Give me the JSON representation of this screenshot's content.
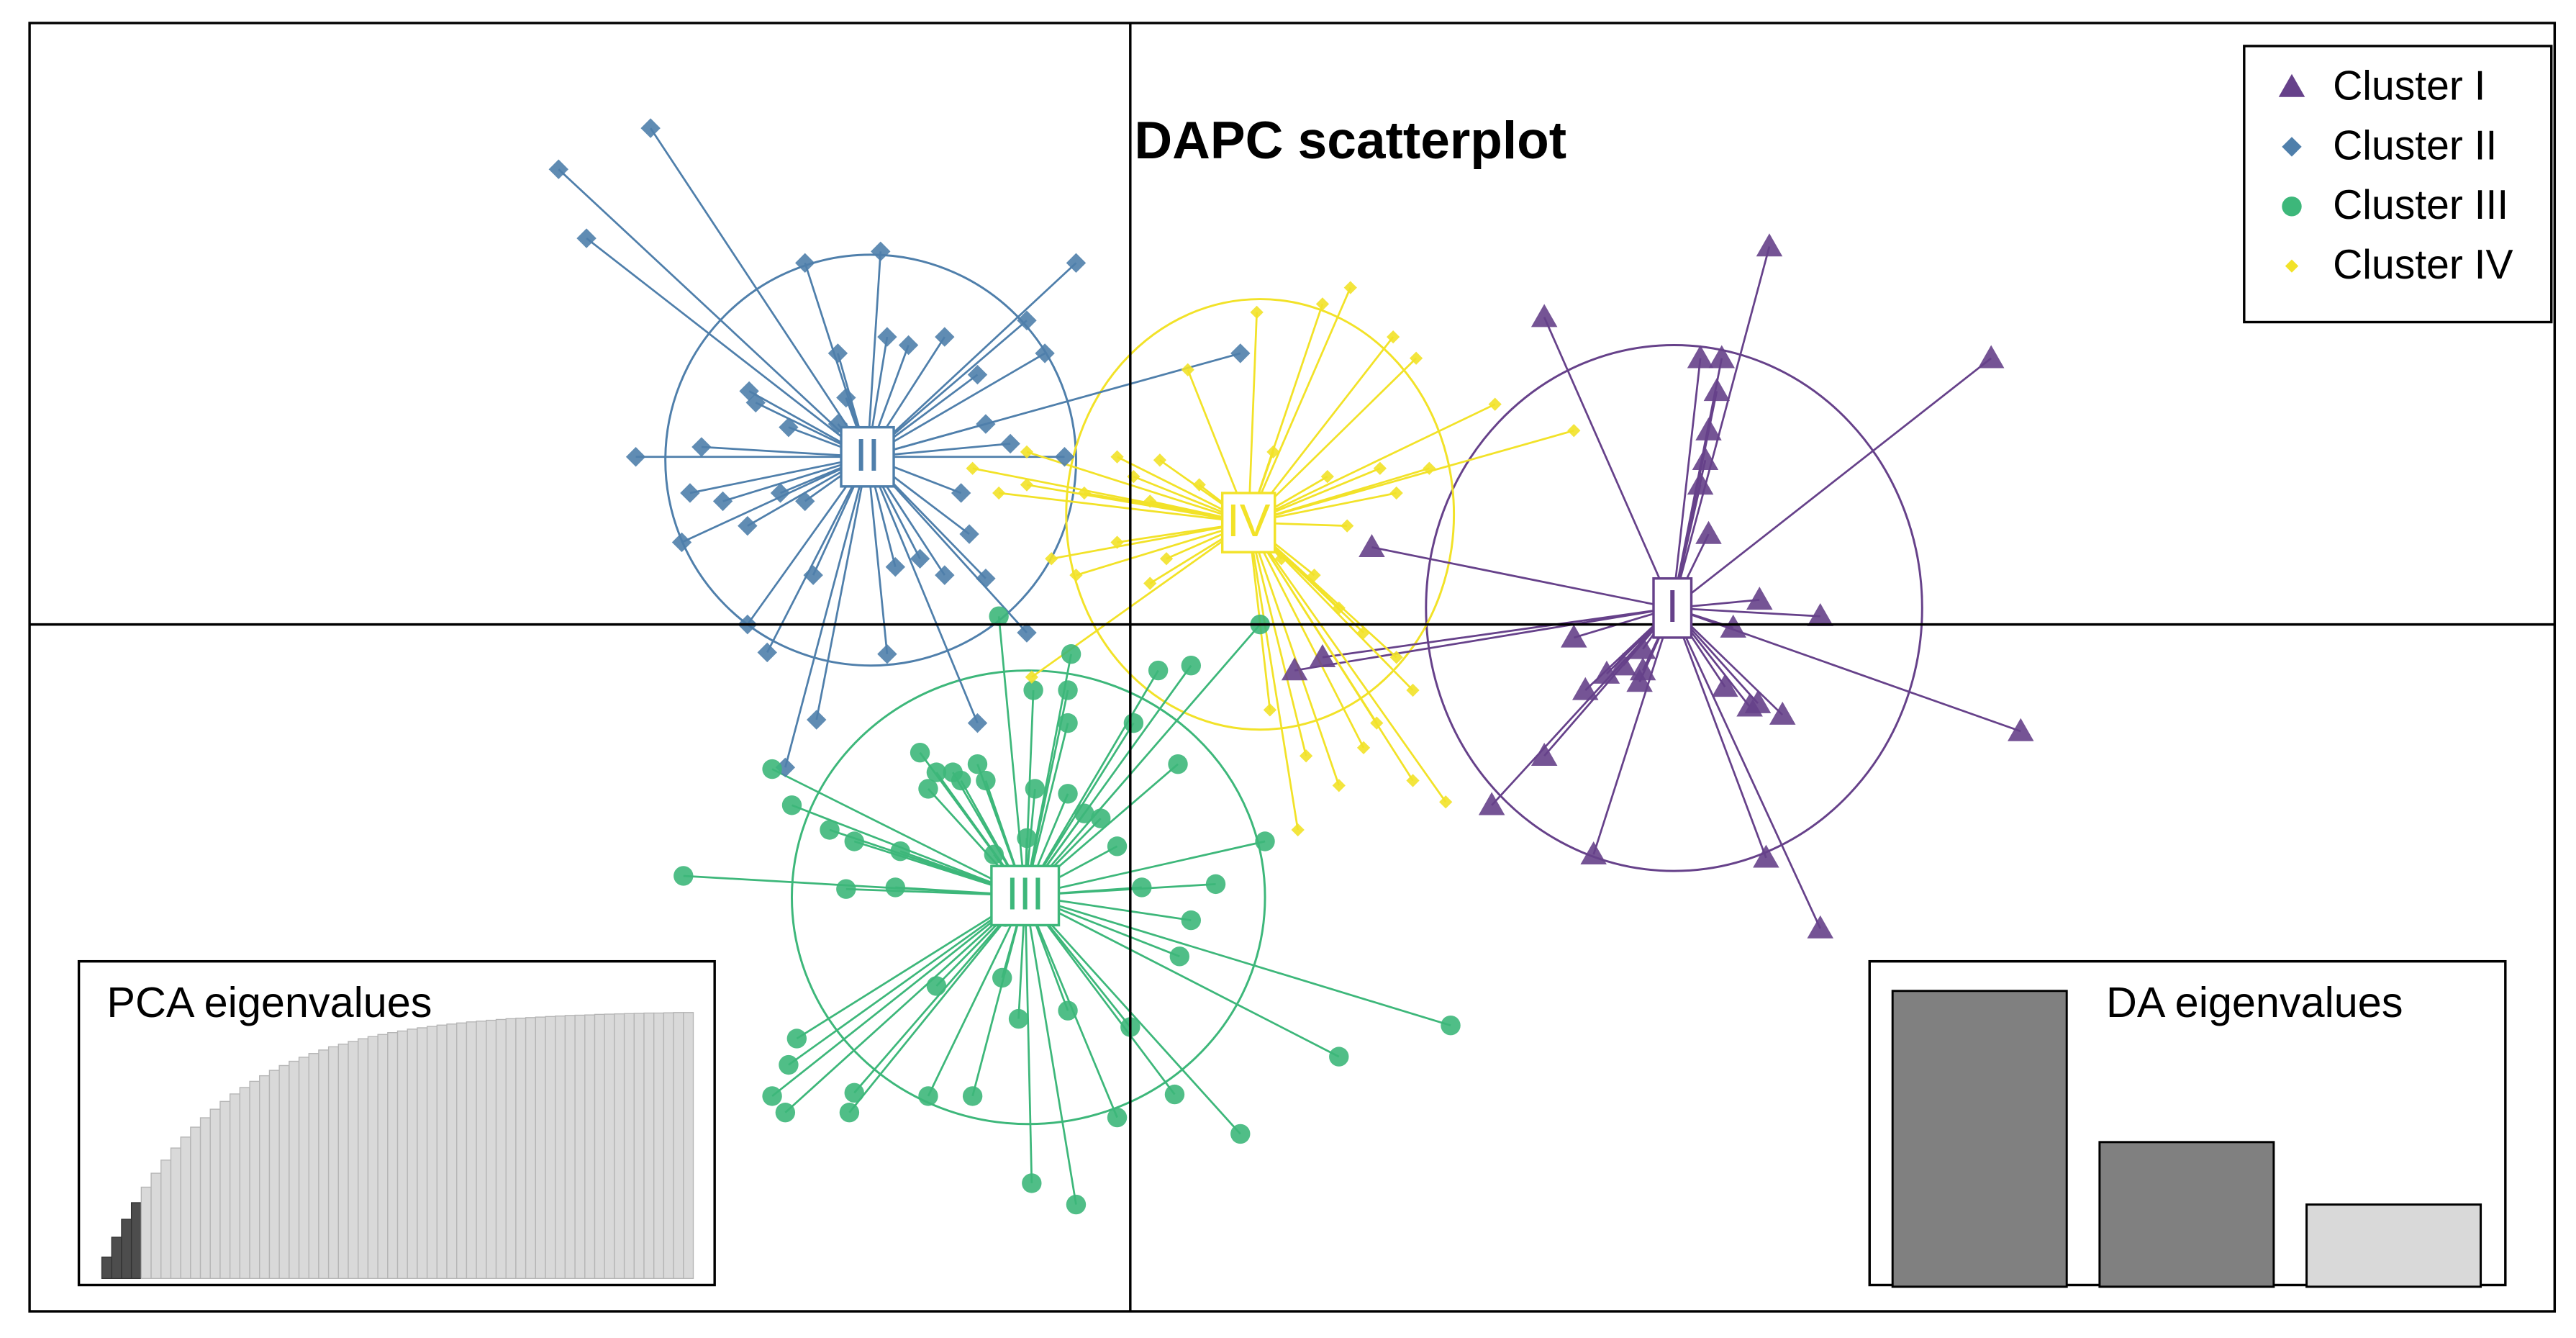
{
  "chart_data": [
    {
      "type": "scatter",
      "title": "DAPC scatterplot",
      "xlim": [
        -6.7,
        8.67
      ],
      "ylim": [
        -4.18,
        3.66
      ],
      "legend": "top-right",
      "series": [
        {
          "name": "Cluster I",
          "label": "I",
          "color": "#66418a",
          "marker": "triangle",
          "centroid": {
            "x": 3.3,
            "y": 0.1
          },
          "ellipse": {
            "cx": 3.31,
            "cy": 0.1,
            "rx": 1.51,
            "ry": 1.6
          },
          "x": [
            3.89,
            5.24,
            2.52,
            3.47,
            3.6,
            3.57,
            3.52,
            3.5,
            3.47,
            3.52,
            1.47,
            3.83,
            4.2,
            3.67,
            2.7,
            3.12,
            3.0,
            2.9,
            2.77,
            3.1,
            3.62,
            3.77,
            3.82,
            3.97,
            5.42,
            1.0,
            1.17,
            2.52,
            2.2,
            2.82,
            3.87,
            4.2,
            3.12
          ],
          "y": [
            2.3,
            1.62,
            1.87,
            1.62,
            1.62,
            1.42,
            1.18,
            1.0,
            0.85,
            0.55,
            0.47,
            0.15,
            0.05,
            -0.02,
            -0.08,
            -0.15,
            -0.25,
            -0.3,
            -0.4,
            -0.35,
            -0.38,
            -0.5,
            -0.48,
            -0.55,
            -0.65,
            -0.28,
            -0.2,
            -0.8,
            -1.1,
            -1.4,
            -1.42,
            -1.85,
            -0.28
          ]
        },
        {
          "name": "Cluster II",
          "label": "II",
          "color": "#4f7fab",
          "marker": "diamond",
          "centroid": {
            "x": -1.6,
            "y": 1.02
          },
          "ellipse": {
            "cx": -1.58,
            "cy": 1.0,
            "rx": 1.25,
            "ry": 1.25
          },
          "x": [
            -2.92,
            -3.48,
            -3.31,
            -1.98,
            -1.52,
            -0.33,
            -0.63,
            -0.52,
            -1.35,
            -1.13,
            -1.48,
            -1.78,
            -1.73,
            -2.32,
            -2.28,
            -2.08,
            -1.78,
            -3.01,
            -2.61,
            -2.68,
            -2.48,
            -2.33,
            -2.13,
            -0.93,
            -0.88,
            -0.73,
            -0.4,
            -1.03,
            -0.98,
            -1.28,
            -1.43,
            -1.13,
            -0.88,
            -1.93,
            -2.33,
            -2.21,
            -1.48,
            -0.63,
            -0.93,
            -1.91,
            -2.1,
            0.67,
            -2.73,
            -1.98
          ],
          "y": [
            3.02,
            2.77,
            2.35,
            2.2,
            2.27,
            2.2,
            1.85,
            1.65,
            1.7,
            1.75,
            1.75,
            1.65,
            1.38,
            1.42,
            1.35,
            1.2,
            1.22,
            1.02,
            1.08,
            0.8,
            0.75,
            0.6,
            0.8,
            1.52,
            1.22,
            1.1,
            1.02,
            0.8,
            0.55,
            0.4,
            0.35,
            0.3,
            0.28,
            0.3,
            0.0,
            -0.17,
            -0.18,
            -0.05,
            -0.6,
            -0.58,
            -0.87,
            1.65,
            0.5,
            0.75
          ]
        },
        {
          "name": "Cluster III",
          "label": "III",
          "color": "#3db77a",
          "marker": "circle",
          "centroid": {
            "x": -0.64,
            "y": -1.65
          },
          "ellipse": {
            "cx": -0.62,
            "cy": -1.66,
            "rx": 1.44,
            "ry": 1.38
          },
          "x": [
            -0.8,
            0.79,
            -0.36,
            0.17,
            0.37,
            -0.59,
            -0.38,
            0.29,
            -0.38,
            0.02,
            -1.28,
            -1.18,
            -1.08,
            -0.93,
            -0.88,
            -1.03,
            -1.23,
            -0.58,
            -0.38,
            -0.28,
            -0.18,
            -2.06,
            -2.18,
            -1.83,
            -1.68,
            -0.63,
            -0.08,
            -0.83,
            0.82,
            -1.4,
            -1.73,
            -1.43,
            -2.72,
            0.52,
            0.07,
            0.37,
            -0.76,
            0.3,
            -1.18,
            -0.78,
            -0.68,
            -0.38,
            0.0,
            1.95,
            1.27,
            -2.03,
            -2.08,
            -1.68,
            -2.18,
            -2.1,
            -1.71,
            -1.23,
            -0.96,
            -0.08,
            0.27,
            0.67,
            -0.6,
            -0.33
          ],
          "y": [
            0.05,
            0.0,
            -0.18,
            -0.28,
            -0.25,
            -0.4,
            -0.4,
            -0.85,
            -0.6,
            -0.6,
            -0.78,
            -0.9,
            -0.9,
            -0.85,
            -0.95,
            -0.95,
            -1.0,
            -1.0,
            -1.03,
            -1.15,
            -1.18,
            -1.1,
            -0.88,
            -1.25,
            -1.32,
            -1.3,
            -1.35,
            -1.4,
            -1.32,
            -1.38,
            -1.61,
            -1.6,
            -1.53,
            -1.58,
            -1.6,
            -1.8,
            -1.78,
            -2.02,
            -2.2,
            -2.15,
            -2.4,
            -2.35,
            -2.45,
            -2.44,
            -2.63,
            -2.52,
            -2.68,
            -2.85,
            -2.87,
            -2.97,
            -2.97,
            -2.87,
            -2.87,
            -3.0,
            -2.86,
            -3.1,
            -3.4,
            -3.53
          ]
        },
        {
          "name": "Cluster IV",
          "label": "IV",
          "color": "#f2e228",
          "marker": "small-diamond",
          "centroid": {
            "x": 0.72,
            "y": 0.62
          },
          "ellipse": {
            "cx": 0.79,
            "cy": 0.67,
            "rx": 1.18,
            "ry": 1.31
          },
          "x": [
            0.77,
            1.34,
            1.17,
            0.35,
            1.6,
            1.74,
            2.22,
            2.7,
            -0.63,
            -0.63,
            -0.96,
            -0.8,
            -0.28,
            0.02,
            -0.08,
            0.18,
            0.12,
            0.42,
            0.87,
            1.2,
            1.52,
            1.82,
            1.62,
            1.32,
            -0.08,
            0.22,
            0.12,
            -0.48,
            0.92,
            1.12,
            1.27,
            1.42,
            1.62,
            1.72,
            1.5,
            1.42,
            1.72,
            1.92,
            1.27,
            1.02,
            0.85,
            -0.6,
            1.07,
            -0.33
          ],
          "y": [
            1.9,
            2.05,
            1.95,
            1.55,
            1.75,
            1.62,
            1.34,
            1.18,
            1.05,
            0.85,
            0.95,
            0.8,
            0.8,
            0.9,
            1.02,
            1.0,
            0.75,
            0.85,
            1.05,
            0.9,
            0.95,
            0.95,
            0.8,
            0.6,
            0.5,
            0.4,
            0.25,
            0.4,
            0.4,
            0.3,
            0.1,
            -0.05,
            -0.2,
            -0.4,
            -0.6,
            -0.75,
            -0.95,
            -1.08,
            -0.98,
            -1.25,
            -0.52,
            -0.32,
            -0.8,
            0.3
          ]
        }
      ]
    },
    {
      "type": "bar",
      "title": "PCA eigenvalues",
      "ylim": [
        0,
        100
      ],
      "color": "#d9d9d9",
      "retained_color": "#4d4d4d",
      "n_retained": 4,
      "values": [
        8.0,
        15.4,
        22.1,
        28.3,
        34.1,
        39.3,
        44.2,
        48.7,
        52.8,
        56.5,
        60.0,
        63.2,
        66.1,
        68.9,
        71.3,
        73.6,
        75.7,
        77.7,
        79.5,
        81.1,
        82.6,
        84.0,
        85.3,
        86.5,
        87.5,
        88.5,
        89.5,
        90.3,
        91.1,
        91.8,
        92.4,
        93.1,
        93.6,
        94.1,
        94.6,
        95.0,
        95.4,
        95.8,
        96.1,
        96.4,
        96.7,
        97.0,
        97.2,
        97.4,
        97.6,
        97.8,
        98.0,
        98.2,
        98.3,
        98.4,
        98.6,
        98.7,
        98.8,
        98.9,
        99.0,
        99.1,
        99.1,
        99.2,
        99.3,
        99.3
      ]
    },
    {
      "type": "bar",
      "title": "DA eigenvalues",
      "ylim": [
        0,
        180
      ],
      "colors": [
        "#808080",
        "#808080",
        "#d9d9d9"
      ],
      "values": [
        180,
        88,
        50
      ]
    }
  ]
}
